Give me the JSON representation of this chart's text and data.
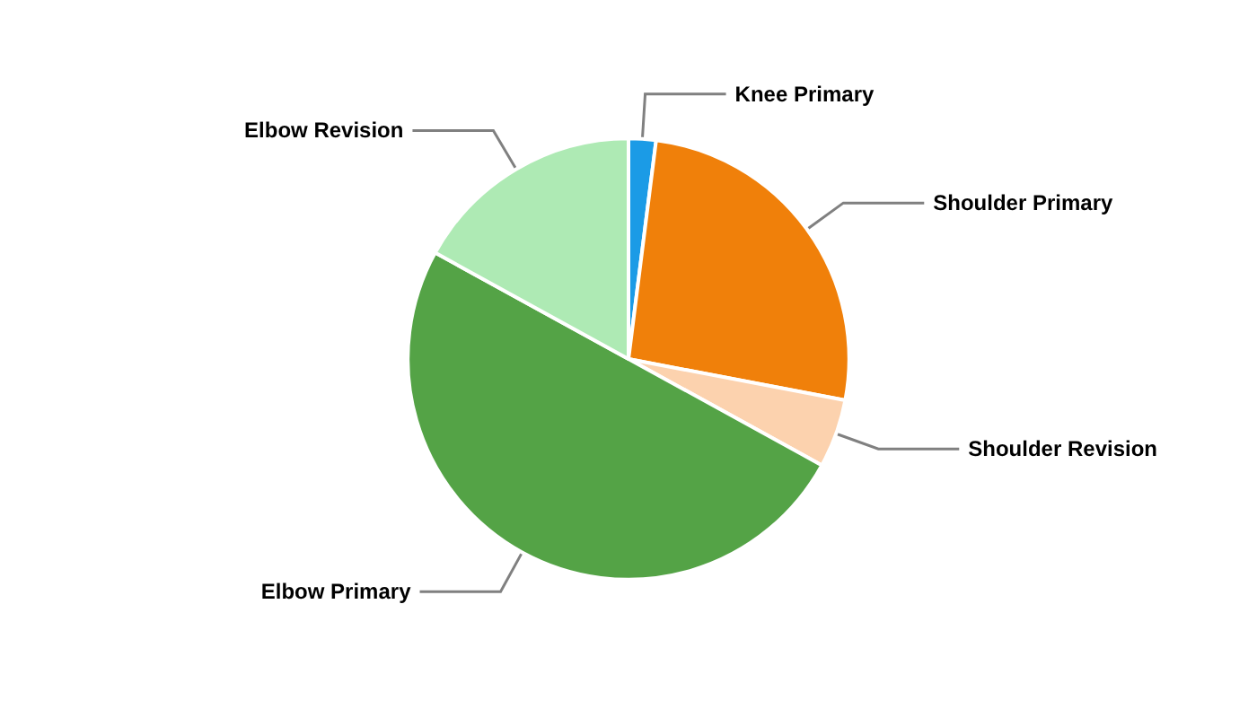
{
  "chart_data": {
    "type": "pie",
    "categories": [
      "Knee Primary",
      "Shoulder Primary",
      "Shoulder Revision",
      "Elbow Primary",
      "Elbow Revision"
    ],
    "values": [
      2,
      26,
      5,
      50,
      17
    ],
    "colors": [
      "#1b9be6",
      "#f0800a",
      "#fcd2ae",
      "#54a346",
      "#aeeab4"
    ],
    "legend": false
  }
}
